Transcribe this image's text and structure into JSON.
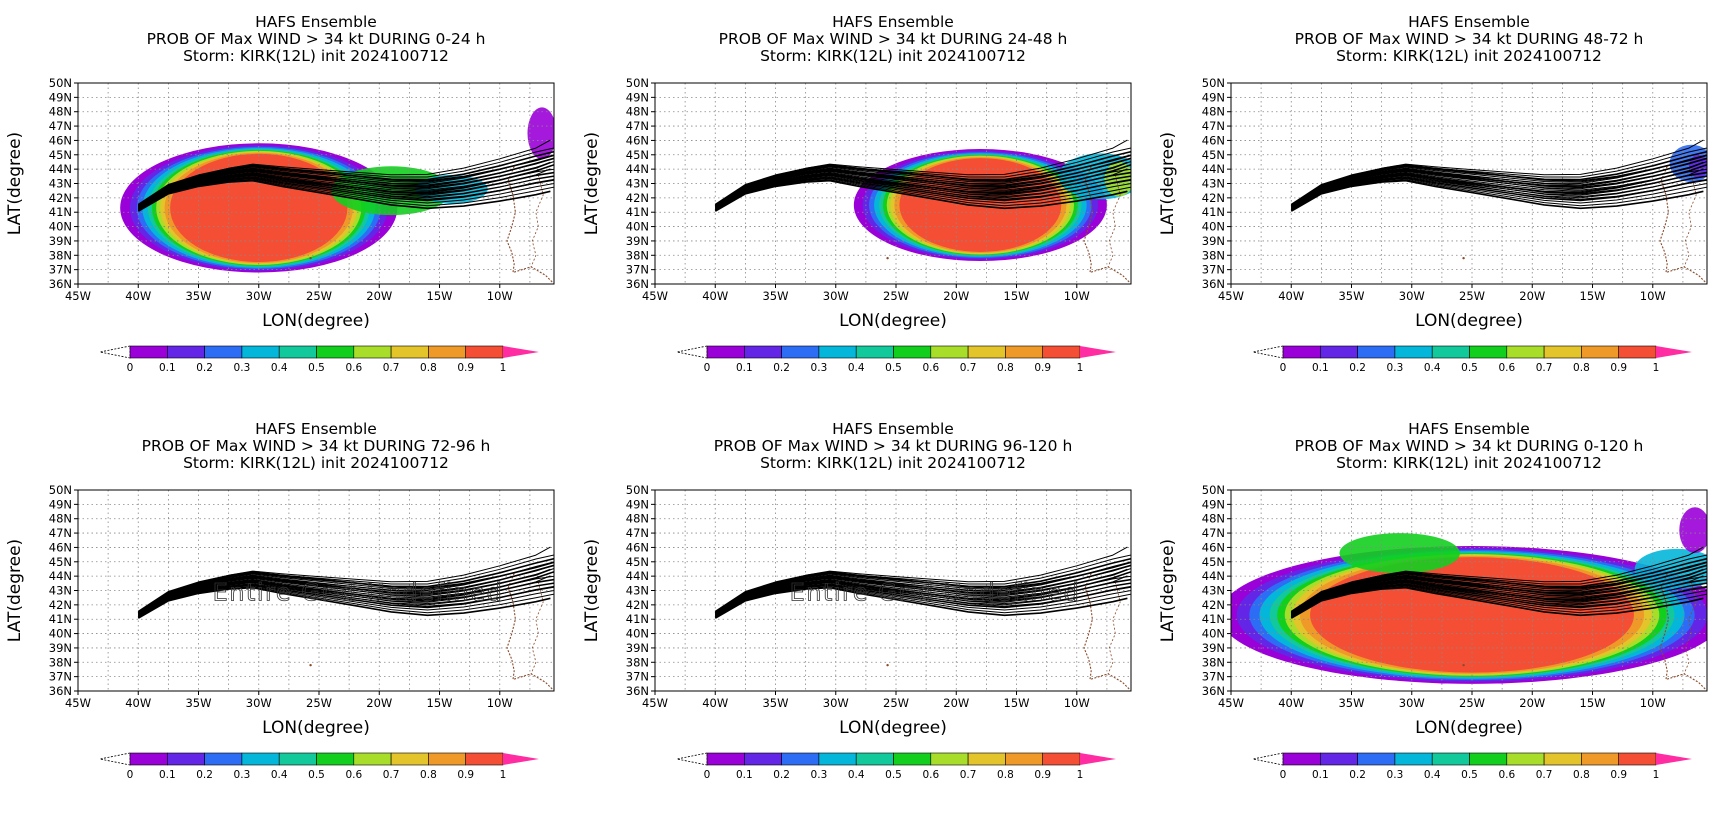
{
  "panels": [
    {
      "title1": "HAFS Ensemble",
      "title2": "PROB OF Max WIND > 34 kt DURING  0-24 h",
      "title3": "Storm: KIRK(12L) init 2024100712",
      "prob_field": "early",
      "note": ""
    },
    {
      "title1": "HAFS Ensemble",
      "title2": "PROB OF Max WIND > 34 kt DURING 24-48 h",
      "title3": "Storm: KIRK(12L) init 2024100712",
      "prob_field": "mid",
      "note": ""
    },
    {
      "title1": "HAFS Ensemble",
      "title2": "PROB OF Max WIND > 34 kt DURING 48-72 h",
      "title3": "Storm: KIRK(12L) init 2024100712",
      "prob_field": "late",
      "note": ""
    },
    {
      "title1": "HAFS Ensemble",
      "title2": "PROB OF Max WIND > 34 kt DURING 72-96 h",
      "title3": "Storm: KIRK(12L) init 2024100712",
      "prob_field": "none",
      "note": "Entire Grid Undefined"
    },
    {
      "title1": "HAFS Ensemble",
      "title2": "PROB OF Max WIND > 34 kt DURING 96-120 h",
      "title3": "Storm: KIRK(12L) init 2024100712",
      "prob_field": "none",
      "note": "Entire Grid Undefined"
    },
    {
      "title1": "HAFS Ensemble",
      "title2": "PROB OF Max WIND > 34 kt DURING 0-120 h",
      "title3": "Storm: KIRK(12L) init 2024100712",
      "prob_field": "total",
      "note": ""
    }
  ],
  "axes": {
    "xlabel": "LON(degree)",
    "ylabel": "LAT(degree)",
    "lon_range": [
      -45,
      -5.5
    ],
    "lat_range": [
      36,
      50
    ],
    "lon_ticks": [
      "45W",
      "40W",
      "35W",
      "30W",
      "25W",
      "20W",
      "15W",
      "10W"
    ],
    "lat_ticks": [
      "36N",
      "37N",
      "38N",
      "39N",
      "40N",
      "41N",
      "42N",
      "43N",
      "44N",
      "45N",
      "46N",
      "47N",
      "48N",
      "49N",
      "50N"
    ],
    "grid": "dotted"
  },
  "colorbar": {
    "labels": [
      "0",
      "0.1",
      "0.2",
      "0.3",
      "0.4",
      "0.5",
      "0.6",
      "0.7",
      "0.8",
      "0.9",
      "1"
    ],
    "colors": [
      "#9a00d8",
      "#6326e6",
      "#2d6cf4",
      "#04b6d9",
      "#12c99b",
      "#12cf1e",
      "#a8de2a",
      "#e3c42b",
      "#ef9a28",
      "#f44f35"
    ],
    "over_color": "#ff2ca2",
    "under_color": "#ffffff"
  },
  "track_points": [
    [
      -40,
      41.3
    ],
    [
      -37.5,
      42.6
    ],
    [
      -35,
      43.2
    ],
    [
      -32.5,
      43.6
    ],
    [
      -30.5,
      43.8
    ],
    [
      -28,
      43.5
    ],
    [
      -25,
      43.2
    ],
    [
      -22,
      42.9
    ],
    [
      -19,
      42.6
    ],
    [
      -16,
      42.5
    ],
    [
      -13,
      42.8
    ],
    [
      -10,
      43.3
    ],
    [
      -7,
      43.9
    ],
    [
      -5.8,
      44.3
    ]
  ]
}
